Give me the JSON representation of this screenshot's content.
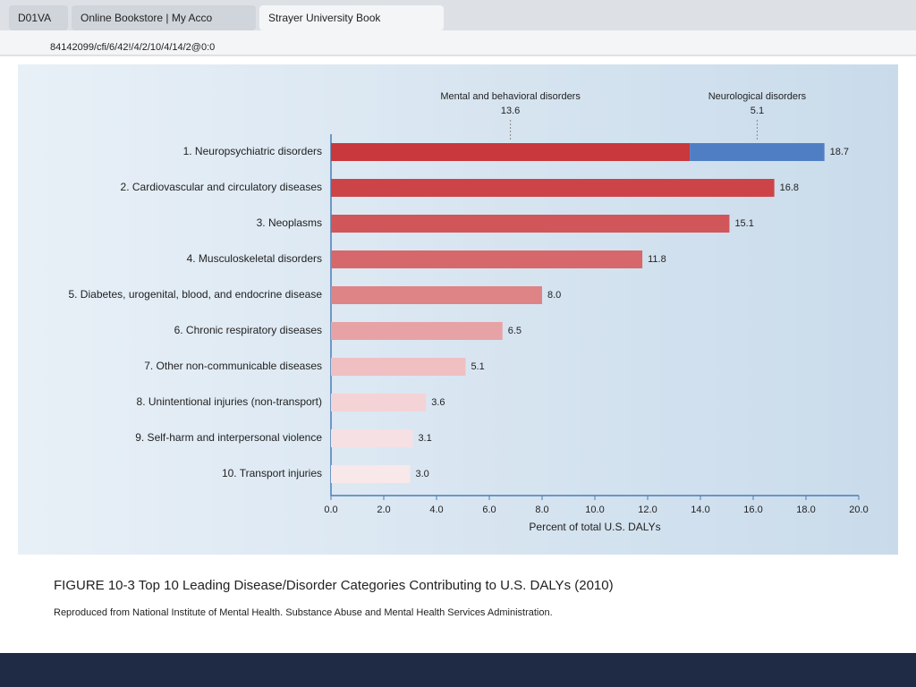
{
  "browser": {
    "tabs": [
      "D01VA",
      "Online Bookstore | My Acco",
      "Strayer University Book"
    ],
    "url": "84142099/cfi/6/42!/4/2/10/4/14/2@0:0"
  },
  "chart_data": {
    "type": "bar",
    "orientation": "horizontal",
    "categories": [
      "1. Neuropsychiatric disorders",
      "2. Cardiovascular and circulatory diseases",
      "3. Neoplasms",
      "4. Musculoskeletal disorders",
      "5. Diabetes, urogenital, blood, and endocrine disease",
      "6. Chronic respiratory diseases",
      "7. Other non-communicable diseases",
      "8. Unintentional injuries (non-transport)",
      "9. Self-harm and interpersonal violence",
      "10. Transport injuries"
    ],
    "values": [
      18.7,
      16.8,
      15.1,
      11.8,
      8,
      6.5,
      5.1,
      3.6,
      3.1,
      3
    ],
    "value_labels": [
      "18.7",
      "16.8",
      "15.1",
      "11.8",
      "8.0",
      "6.5",
      "5.1",
      "3.6",
      "3.1",
      "3.0"
    ],
    "colors": [
      "#c8383c",
      "#cc4448",
      "#d0565a",
      "#d6686b",
      "#de8487",
      "#e7a2a6",
      "#efbfc2",
      "#f3d3d6",
      "#f6e0e3",
      "#f8e8ea"
    ],
    "breakdown": [
      {
        "name": "Mental and behavioral disorders",
        "value": 13.6,
        "color": "#c8383c"
      },
      {
        "name": "Neurological disorders",
        "value": 5.1,
        "color": "#4f7ec4"
      }
    ],
    "xlabel": "Percent of total U.S. DALYs",
    "xlim": [
      0,
      20
    ],
    "xticks": [
      {
        "value": 0,
        "label": "0.0"
      },
      {
        "value": 2,
        "label": "2.0"
      },
      {
        "value": 4,
        "label": "4.0"
      },
      {
        "value": 6,
        "label": "6.0"
      },
      {
        "value": 8,
        "label": "8.0"
      },
      {
        "value": 10,
        "label": "10.0"
      },
      {
        "value": 12,
        "label": "12.0"
      },
      {
        "value": 14,
        "label": "14.0"
      },
      {
        "value": 16,
        "label": "16.0"
      },
      {
        "value": 18,
        "label": "18.0"
      },
      {
        "value": 20,
        "label": "20.0"
      }
    ],
    "caption": "FIGURE 10-3 Top 10 Leading Disease/Disorder Categories Contributing to U.S. DALYs (2010)",
    "source": "Reproduced from National Institute of Mental Health. Substance Abuse and Mental Health Services Administration."
  }
}
